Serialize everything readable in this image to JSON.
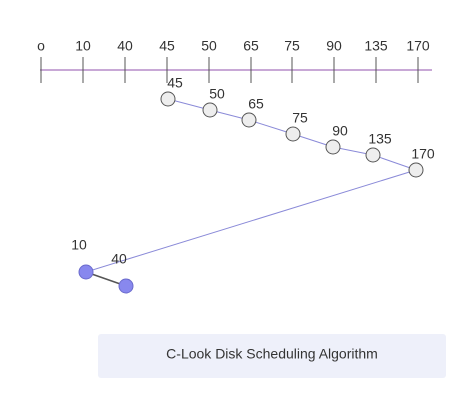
{
  "axis": {
    "ticks": [
      "o",
      "10",
      "40",
      "45",
      "50",
      "65",
      "75",
      "90",
      "135",
      "170"
    ]
  },
  "nodes": [
    {
      "label": "45"
    },
    {
      "label": "50"
    },
    {
      "label": "65"
    },
    {
      "label": "75"
    },
    {
      "label": "90"
    },
    {
      "label": "135"
    },
    {
      "label": "170"
    },
    {
      "label": "10"
    },
    {
      "label": "40"
    }
  ],
  "caption": "C-Look Disk Scheduling Algorithm"
}
